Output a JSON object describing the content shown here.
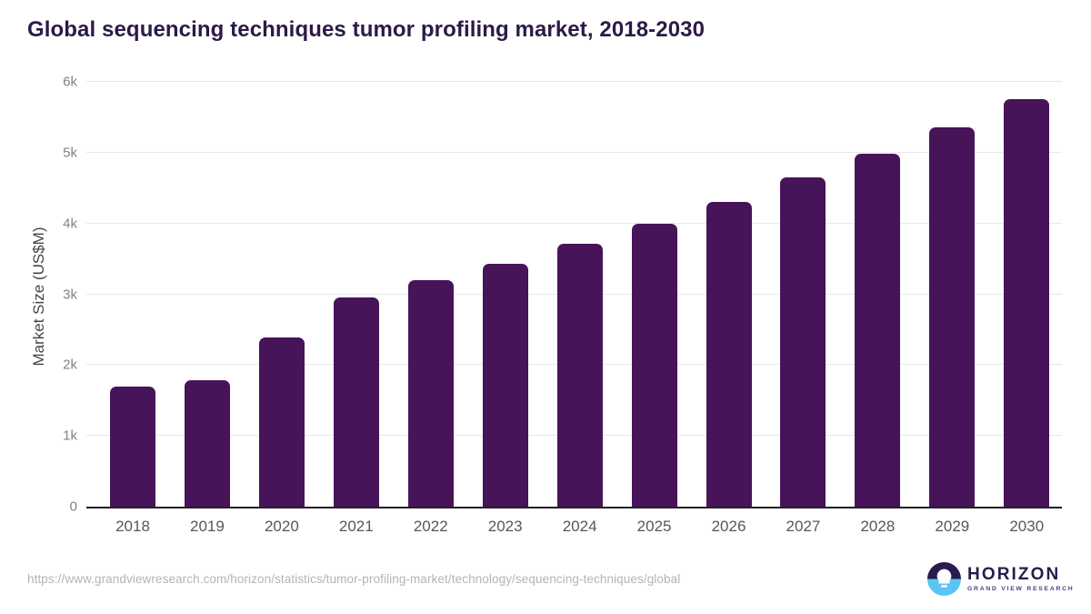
{
  "title": "Global sequencing techniques tumor profiling market, 2018-2030",
  "chart_data": {
    "type": "bar",
    "categories": [
      "2018",
      "2019",
      "2020",
      "2021",
      "2022",
      "2023",
      "2024",
      "2025",
      "2026",
      "2027",
      "2028",
      "2029",
      "2030"
    ],
    "values": [
      1700,
      1790,
      2390,
      2950,
      3200,
      3430,
      3715,
      4000,
      4310,
      4645,
      4990,
      5355,
      5750
    ],
    "title": "Global sequencing techniques tumor profiling market, 2018-2030",
    "xlabel": "",
    "ylabel": "Market Size (US$M)",
    "ylim": [
      0,
      6000
    ],
    "ytick_step": 1000,
    "ytick_labels": [
      "0",
      "1k",
      "2k",
      "3k",
      "4k",
      "5k",
      "6k"
    ],
    "grid": true,
    "legend": "none",
    "bar_color": "#471459"
  },
  "footer": {
    "source_url": "https://www.grandviewresearch.com/horizon/statistics/tumor-profiling-market/technology/sequencing-techniques/global",
    "logo": {
      "name": "HORIZON",
      "subtitle": "GRAND VIEW RESEARCH"
    }
  },
  "colors": {
    "bar": "#471459",
    "title_text": "#2c1a47",
    "axis_line": "#222228",
    "gridline": "#e8e8e8",
    "y_tick_text": "#828282",
    "x_tick_text": "#575757",
    "y_axis_title_text": "#454545",
    "url_text": "#b4b4b4",
    "logo_dark_purple": "#2a1b4e",
    "logo_light_blue": "#5bc5f2",
    "logo_subtitle_text": "#4a3c85"
  }
}
